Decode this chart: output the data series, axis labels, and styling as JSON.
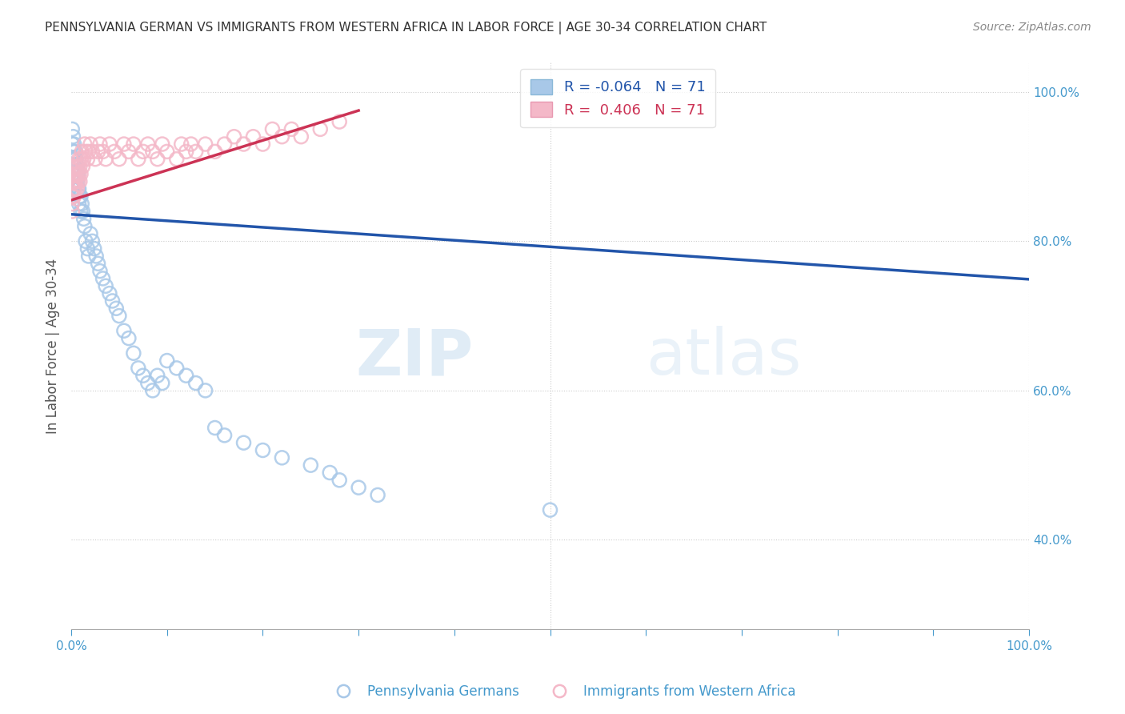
{
  "title": "PENNSYLVANIA GERMAN VS IMMIGRANTS FROM WESTERN AFRICA IN LABOR FORCE | AGE 30-34 CORRELATION CHART",
  "source": "Source: ZipAtlas.com",
  "ylabel": "In Labor Force | Age 30-34",
  "r_blue": -0.064,
  "r_pink": 0.406,
  "n_blue": 71,
  "n_pink": 71,
  "blue_color": "#a8c8e8",
  "pink_color": "#f4b8c8",
  "line_blue": "#2255aa",
  "line_pink": "#cc3355",
  "background_color": "#ffffff",
  "grid_color": "#cccccc",
  "axis_label_color": "#4499cc",
  "title_color": "#333333",
  "blue_x": [
    0.001,
    0.001,
    0.001,
    0.001,
    0.001,
    0.002,
    0.002,
    0.002,
    0.002,
    0.003,
    0.003,
    0.003,
    0.003,
    0.004,
    0.004,
    0.004,
    0.005,
    0.005,
    0.006,
    0.006,
    0.007,
    0.007,
    0.008,
    0.008,
    0.009,
    0.01,
    0.01,
    0.011,
    0.012,
    0.013,
    0.014,
    0.015,
    0.017,
    0.018,
    0.02,
    0.022,
    0.024,
    0.026,
    0.028,
    0.03,
    0.033,
    0.036,
    0.04,
    0.043,
    0.047,
    0.05,
    0.055,
    0.06,
    0.065,
    0.07,
    0.075,
    0.08,
    0.085,
    0.09,
    0.095,
    0.1,
    0.11,
    0.12,
    0.13,
    0.14,
    0.15,
    0.16,
    0.18,
    0.2,
    0.22,
    0.25,
    0.27,
    0.28,
    0.3,
    0.32,
    0.5
  ],
  "blue_y": [
    0.95,
    0.93,
    0.91,
    0.89,
    0.87,
    0.94,
    0.92,
    0.9,
    0.88,
    0.93,
    0.91,
    0.89,
    0.87,
    0.92,
    0.9,
    0.88,
    0.91,
    0.89,
    0.9,
    0.88,
    0.89,
    0.87,
    0.87,
    0.85,
    0.86,
    0.84,
    0.86,
    0.85,
    0.84,
    0.83,
    0.82,
    0.8,
    0.79,
    0.78,
    0.81,
    0.8,
    0.79,
    0.78,
    0.77,
    0.76,
    0.75,
    0.74,
    0.73,
    0.72,
    0.71,
    0.7,
    0.68,
    0.67,
    0.65,
    0.63,
    0.62,
    0.61,
    0.6,
    0.62,
    0.61,
    0.64,
    0.63,
    0.62,
    0.61,
    0.6,
    0.55,
    0.54,
    0.53,
    0.52,
    0.51,
    0.5,
    0.49,
    0.48,
    0.47,
    0.46,
    0.44
  ],
  "pink_x": [
    0.001,
    0.001,
    0.001,
    0.001,
    0.002,
    0.002,
    0.002,
    0.003,
    0.003,
    0.003,
    0.003,
    0.004,
    0.004,
    0.004,
    0.005,
    0.005,
    0.006,
    0.006,
    0.007,
    0.007,
    0.008,
    0.008,
    0.009,
    0.009,
    0.01,
    0.01,
    0.011,
    0.012,
    0.013,
    0.014,
    0.015,
    0.017,
    0.018,
    0.02,
    0.022,
    0.025,
    0.028,
    0.03,
    0.033,
    0.036,
    0.04,
    0.045,
    0.05,
    0.055,
    0.06,
    0.065,
    0.07,
    0.075,
    0.08,
    0.085,
    0.09,
    0.095,
    0.1,
    0.11,
    0.115,
    0.12,
    0.125,
    0.13,
    0.14,
    0.15,
    0.16,
    0.17,
    0.18,
    0.19,
    0.2,
    0.21,
    0.22,
    0.23,
    0.24,
    0.26,
    0.28
  ],
  "pink_y": [
    0.88,
    0.86,
    0.85,
    0.84,
    0.89,
    0.87,
    0.86,
    0.9,
    0.88,
    0.87,
    0.86,
    0.89,
    0.88,
    0.87,
    0.9,
    0.88,
    0.89,
    0.87,
    0.9,
    0.88,
    0.91,
    0.89,
    0.9,
    0.88,
    0.91,
    0.89,
    0.92,
    0.9,
    0.91,
    0.93,
    0.92,
    0.91,
    0.92,
    0.93,
    0.92,
    0.91,
    0.92,
    0.93,
    0.92,
    0.91,
    0.93,
    0.92,
    0.91,
    0.93,
    0.92,
    0.93,
    0.91,
    0.92,
    0.93,
    0.92,
    0.91,
    0.93,
    0.92,
    0.91,
    0.93,
    0.92,
    0.93,
    0.92,
    0.93,
    0.92,
    0.93,
    0.94,
    0.93,
    0.94,
    0.93,
    0.95,
    0.94,
    0.95,
    0.94,
    0.95,
    0.96
  ],
  "xmin": 0.0,
  "xmax": 1.0,
  "ymin": 0.28,
  "ymax": 1.04,
  "xticks": [
    0.0,
    0.1,
    0.2,
    0.3,
    0.4,
    0.5,
    0.6,
    0.7,
    0.8,
    0.9,
    1.0
  ],
  "xtick_labels": [
    "0.0%",
    "",
    "",
    "",
    "",
    "",
    "",
    "",
    "",
    "",
    "100.0%"
  ],
  "ytick_labels_right": [
    "40.0%",
    "60.0%",
    "80.0%",
    "100.0%"
  ],
  "yticks_right": [
    0.4,
    0.6,
    0.8,
    1.0
  ],
  "legend_blue": "Pennsylvania Germans",
  "legend_pink": "Immigrants from Western Africa",
  "watermark_zip": "ZIP",
  "watermark_atlas": "atlas",
  "blue_line_x0": 0.0,
  "blue_line_x1": 1.0,
  "blue_line_y0": 0.836,
  "blue_line_y1": 0.749,
  "pink_line_x0": 0.0,
  "pink_line_x1": 0.3,
  "pink_line_y0": 0.855,
  "pink_line_y1": 0.975
}
